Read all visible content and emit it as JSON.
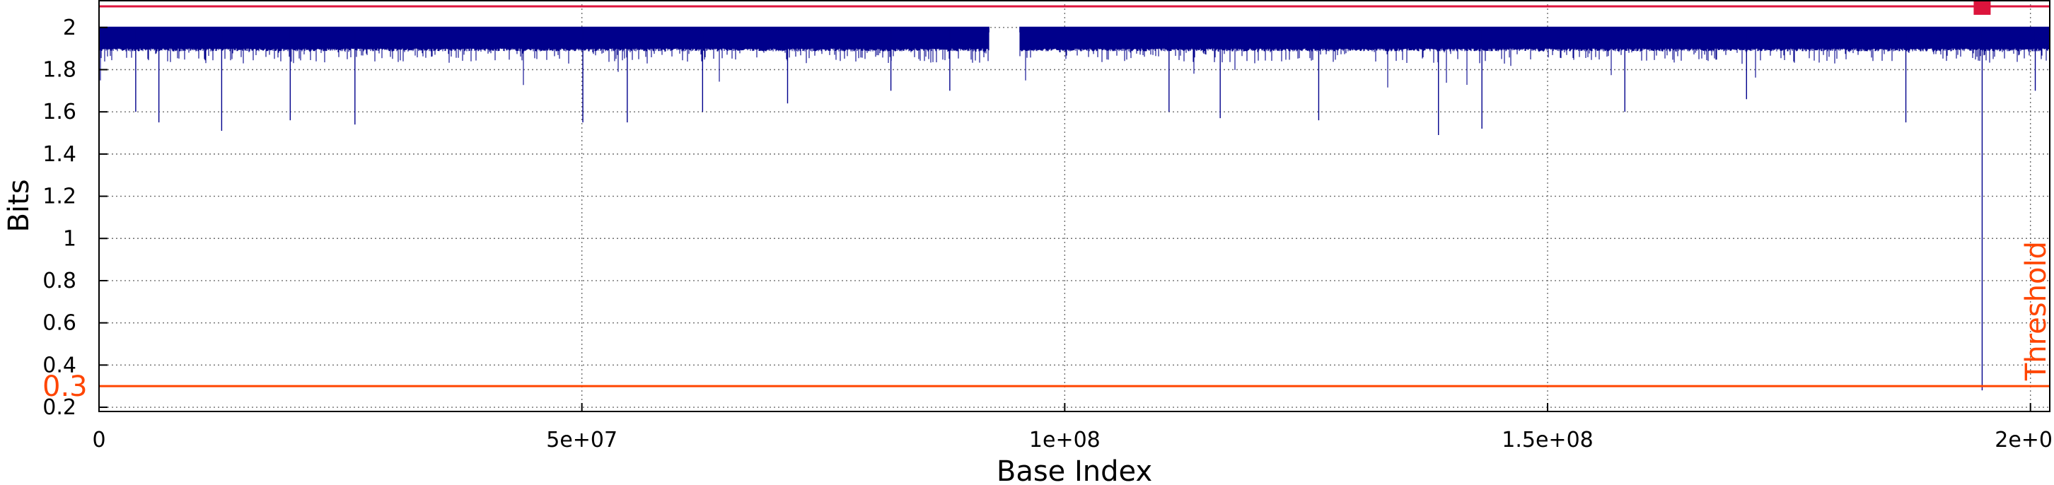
{
  "chart_data": {
    "type": "line",
    "title": "",
    "xlabel": "Base Index",
    "ylabel": "Bits",
    "xlim": [
      0,
      202000000
    ],
    "ylim": [
      0.18,
      2.13
    ],
    "x_ticks": [
      0,
      50000000,
      100000000,
      150000000,
      200000000
    ],
    "x_tick_labels": [
      "0",
      "5e+07",
      "1e+08",
      "1.5e+08",
      "2e+08"
    ],
    "y_ticks": [
      0.2,
      0.4,
      0.6,
      0.8,
      1,
      1.2,
      1.4,
      1.6,
      1.8,
      2
    ],
    "y_tick_labels": [
      "0.2",
      "0.4",
      "0.6",
      "0.8",
      "1",
      "1.2",
      "1.4",
      "1.6",
      "1.8",
      "2"
    ],
    "grid": true,
    "series": [
      {
        "color": "#00008b",
        "typical_range": [
          1.9,
          1.99
        ],
        "gap": [
          92200000,
          95300000
        ],
        "dips": [
          {
            "x": 3800000,
            "y": 1.6
          },
          {
            "x": 6200000,
            "y": 1.55
          },
          {
            "x": 12700000,
            "y": 1.51
          },
          {
            "x": 19800000,
            "y": 1.56
          },
          {
            "x": 26500000,
            "y": 1.54
          },
          {
            "x": 50100000,
            "y": 1.55
          },
          {
            "x": 54700000,
            "y": 1.55
          },
          {
            "x": 62500000,
            "y": 1.6
          },
          {
            "x": 71300000,
            "y": 1.64
          },
          {
            "x": 82000000,
            "y": 1.7
          },
          {
            "x": 88100000,
            "y": 1.7
          },
          {
            "x": 110800000,
            "y": 1.6
          },
          {
            "x": 116100000,
            "y": 1.57
          },
          {
            "x": 126300000,
            "y": 1.56
          },
          {
            "x": 138700000,
            "y": 1.49
          },
          {
            "x": 143200000,
            "y": 1.52
          },
          {
            "x": 158000000,
            "y": 1.6
          },
          {
            "x": 170600000,
            "y": 1.66
          },
          {
            "x": 187100000,
            "y": 1.55
          },
          {
            "x": 195000000,
            "y": 0.28
          },
          {
            "x": 200500000,
            "y": 1.7
          }
        ]
      }
    ],
    "reference_lines": [
      {
        "y": 0.3,
        "label": "Threshold",
        "value_label": "0.3",
        "color": "#ff4500"
      },
      {
        "y": 2.1,
        "color": "#dc143c"
      }
    ],
    "markers": [
      {
        "x": 195000000,
        "y": 2.1,
        "color": "#dc143c",
        "shape": "square"
      }
    ]
  }
}
